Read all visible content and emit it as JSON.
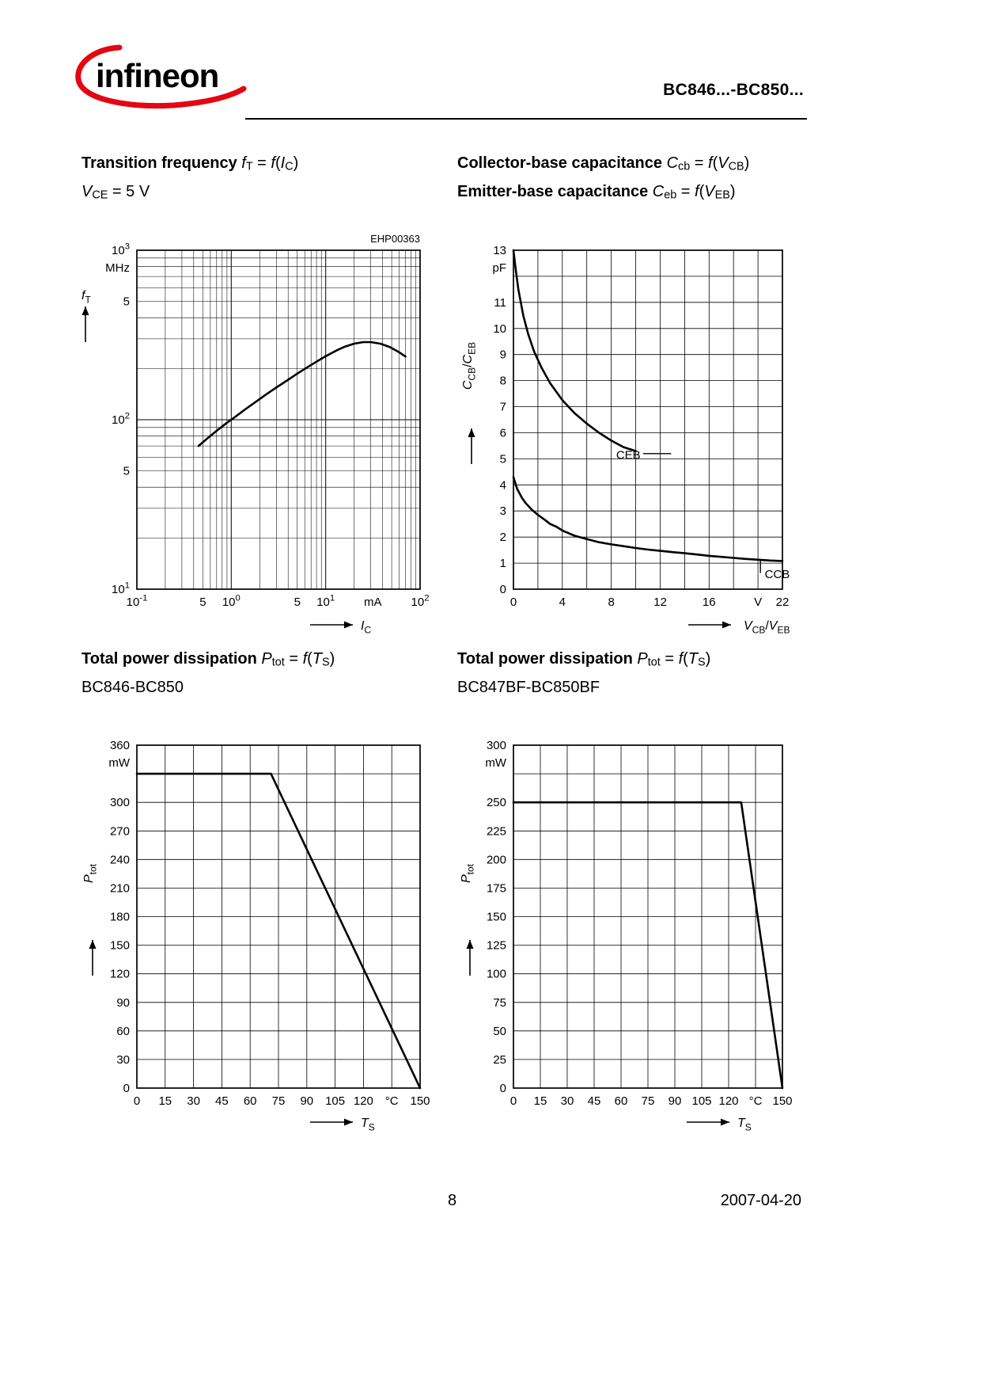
{
  "header": {
    "logo_text": "infineon",
    "doc_title": "BC846...-BC850...",
    "brand_blue": "#1E5BA8",
    "brand_red": "#E30613"
  },
  "footer": {
    "page_number": "8",
    "date": "2007-04-20"
  },
  "headings": {
    "ft_title": [
      {
        "t": "Transition frequency ",
        "b": true
      },
      {
        "t": "f",
        "m": true
      },
      {
        "t": "T",
        "s": true
      },
      {
        "t": " = "
      },
      {
        "t": "f",
        "m": true
      },
      {
        "t": "("
      },
      {
        "t": "I",
        "m": true
      },
      {
        "t": "C",
        "s": true
      },
      {
        "t": ")"
      }
    ],
    "ft_subtitle": [
      {
        "t": "V",
        "m": true
      },
      {
        "t": "CE",
        "s": true
      },
      {
        "t": " = 5 V"
      }
    ],
    "cap_title1": [
      {
        "t": "Collector-base capacitance ",
        "b": true
      },
      {
        "t": "C",
        "m": true
      },
      {
        "t": "cb",
        "s": true
      },
      {
        "t": " = "
      },
      {
        "t": "f",
        "m": true
      },
      {
        "t": "("
      },
      {
        "t": "V",
        "m": true
      },
      {
        "t": "CB",
        "s": true
      },
      {
        "t": ")"
      }
    ],
    "cap_title2": [
      {
        "t": "Emitter-base capacitance ",
        "b": true
      },
      {
        "t": "C",
        "m": true
      },
      {
        "t": "eb",
        "s": true
      },
      {
        "t": " = "
      },
      {
        "t": "f",
        "m": true
      },
      {
        "t": "("
      },
      {
        "t": "V",
        "m": true
      },
      {
        "t": "EB",
        "s": true
      },
      {
        "t": ")"
      }
    ],
    "ptot1_title": [
      {
        "t": "Total power dissipation ",
        "b": true
      },
      {
        "t": "P",
        "m": true
      },
      {
        "t": "tot",
        "s": true
      },
      {
        "t": " = "
      },
      {
        "t": "f",
        "m": true
      },
      {
        "t": "("
      },
      {
        "t": "T",
        "m": true
      },
      {
        "t": "S",
        "s": true
      },
      {
        "t": ")"
      }
    ],
    "ptot1_subtitle": [
      {
        "t": "BC846-BC850"
      }
    ],
    "ptot2_title": [
      {
        "t": "Total power dissipation ",
        "b": true
      },
      {
        "t": "P",
        "m": true
      },
      {
        "t": "tot",
        "s": true
      },
      {
        "t": " = "
      },
      {
        "t": "f",
        "m": true
      },
      {
        "t": "("
      },
      {
        "t": "T",
        "m": true
      },
      {
        "t": "S",
        "s": true
      },
      {
        "t": ")"
      }
    ],
    "ptot2_subtitle": [
      {
        "t": "BC847BF-BC850BF"
      }
    ]
  },
  "chart_data": [
    {
      "id": "transition-frequency",
      "type": "line",
      "title": "Transition frequency fT = f(IC), VCE = 5 V",
      "note": "EHP00363",
      "x": {
        "scale": "log",
        "min": 0.1,
        "max": 100,
        "unit": "mA",
        "axis_label": [
          {
            "t": "I",
            "m": true
          },
          {
            "t": "C",
            "s": true
          }
        ],
        "ticks": [
          {
            "v": 0.1,
            "label": [
              {
                "t": "10"
              },
              {
                "t": "-1",
                "u": true
              }
            ]
          },
          {
            "v": 0.5,
            "label": "5"
          },
          {
            "v": 1,
            "label": [
              {
                "t": "10"
              },
              {
                "t": "0",
                "u": true
              }
            ]
          },
          {
            "v": 5,
            "label": "5"
          },
          {
            "v": 10,
            "label": [
              {
                "t": "10"
              },
              {
                "t": "1",
                "u": true
              }
            ]
          },
          {
            "v": 31.6,
            "label": "mA"
          },
          {
            "v": 100,
            "label": [
              {
                "t": "10"
              },
              {
                "t": "2",
                "u": true
              }
            ]
          }
        ]
      },
      "y": {
        "scale": "log",
        "min": 10,
        "max": 1000,
        "unit": "MHz",
        "axis_label": [
          {
            "t": "f",
            "m": true
          },
          {
            "t": "T",
            "s": true
          }
        ],
        "ticks": [
          {
            "v": 1000,
            "label": [
              {
                "t": "10"
              },
              {
                "t": "3",
                "u": true
              }
            ]
          },
          {
            "v": 500,
            "label": "5"
          },
          {
            "v": 100,
            "label": [
              {
                "t": "10"
              },
              {
                "t": "2",
                "u": true
              }
            ]
          },
          {
            "v": 50,
            "label": "5"
          },
          {
            "v": 10,
            "label": [
              {
                "t": "10"
              },
              {
                "t": "1",
                "u": true
              }
            ]
          }
        ]
      },
      "series": [
        {
          "name": "fT",
          "points": [
            [
              0.45,
              70
            ],
            [
              0.55,
              77
            ],
            [
              0.7,
              86
            ],
            [
              0.9,
              96
            ],
            [
              1.1,
              104
            ],
            [
              1.4,
              115
            ],
            [
              1.8,
              127
            ],
            [
              2.3,
              140
            ],
            [
              3,
              155
            ],
            [
              4,
              172
            ],
            [
              5,
              187
            ],
            [
              6.5,
              205
            ],
            [
              8,
              220
            ],
            [
              10,
              237
            ],
            [
              13,
              256
            ],
            [
              16,
              270
            ],
            [
              20,
              281
            ],
            [
              25,
              287
            ],
            [
              30,
              287
            ],
            [
              38,
              281
            ],
            [
              48,
              268
            ],
            [
              60,
              250
            ],
            [
              70,
              236
            ]
          ]
        }
      ]
    },
    {
      "id": "capacitance",
      "type": "line",
      "title": "Collector-base capacitance Ccb = f(VCB); Emitter-base capacitance Ceb = f(VEB)",
      "x": {
        "scale": "linear",
        "min": 0,
        "max": 22,
        "grid_step": 2,
        "unit": "V",
        "axis_label": [
          {
            "t": "V",
            "m": true
          },
          {
            "t": "CB",
            "s": true
          },
          {
            "t": "/"
          },
          {
            "t": "V",
            "m": true
          },
          {
            "t": "EB",
            "s": true
          }
        ],
        "ticks": [
          {
            "v": 0,
            "label": "0"
          },
          {
            "v": 4,
            "label": "4"
          },
          {
            "v": 8,
            "label": "8"
          },
          {
            "v": 12,
            "label": "12"
          },
          {
            "v": 16,
            "label": "16"
          },
          {
            "v": 20,
            "label": "V"
          },
          {
            "v": 22,
            "label": "22"
          }
        ]
      },
      "y": {
        "scale": "linear",
        "min": 0,
        "max": 13,
        "grid_step": 1,
        "unit": "pF",
        "axis_label": [
          {
            "t": "C",
            "m": true
          },
          {
            "t": "CB",
            "s": true
          },
          {
            "t": "/"
          },
          {
            "t": "C",
            "m": true
          },
          {
            "t": "EB",
            "s": true
          }
        ],
        "ticks": [
          {
            "v": 13,
            "label": "13"
          },
          {
            "v": 11,
            "label": "11"
          },
          {
            "v": 10,
            "label": "10"
          },
          {
            "v": 9,
            "label": "9"
          },
          {
            "v": 8,
            "label": "8"
          },
          {
            "v": 7,
            "label": "7"
          },
          {
            "v": 6,
            "label": "6"
          },
          {
            "v": 5,
            "label": "5"
          },
          {
            "v": 4,
            "label": "4"
          },
          {
            "v": 3,
            "label": "3"
          },
          {
            "v": 2,
            "label": "2"
          },
          {
            "v": 1,
            "label": "1"
          },
          {
            "v": 0,
            "label": "0"
          }
        ]
      },
      "series": [
        {
          "name": "CEB",
          "points": [
            [
              0,
              13
            ],
            [
              0.15,
              12.4
            ],
            [
              0.4,
              11.5
            ],
            [
              0.8,
              10.5
            ],
            [
              1.2,
              9.8
            ],
            [
              1.7,
              9.1
            ],
            [
              2.3,
              8.5
            ],
            [
              3,
              7.9
            ],
            [
              4,
              7.25
            ],
            [
              5,
              6.75
            ],
            [
              6,
              6.35
            ],
            [
              7,
              6.0
            ],
            [
              8,
              5.7
            ],
            [
              9,
              5.45
            ],
            [
              10,
              5.3
            ]
          ]
        },
        {
          "name": "CCB",
          "points": [
            [
              0,
              4.3
            ],
            [
              0.3,
              3.85
            ],
            [
              0.7,
              3.5
            ],
            [
              1,
              3.3
            ],
            [
              1.5,
              3.05
            ],
            [
              2,
              2.85
            ],
            [
              2.6,
              2.65
            ],
            [
              3,
              2.5
            ],
            [
              3.5,
              2.4
            ],
            [
              4,
              2.25
            ],
            [
              5,
              2.05
            ],
            [
              6,
              1.92
            ],
            [
              7,
              1.8
            ],
            [
              8,
              1.72
            ],
            [
              9,
              1.65
            ],
            [
              10,
              1.58
            ],
            [
              11,
              1.52
            ],
            [
              12,
              1.47
            ],
            [
              13,
              1.42
            ],
            [
              14,
              1.38
            ],
            [
              15,
              1.33
            ],
            [
              16,
              1.28
            ],
            [
              17,
              1.24
            ],
            [
              18,
              1.2
            ],
            [
              19,
              1.16
            ],
            [
              20,
              1.13
            ],
            [
              21,
              1.1
            ],
            [
              22,
              1.08
            ]
          ]
        }
      ],
      "annotations": [
        {
          "text": "CEB",
          "x": 8.4,
          "y": 5.0,
          "leader": [
            [
              10.6,
              5.2
            ],
            [
              12.9,
              5.2
            ]
          ]
        },
        {
          "text": "CCB",
          "x": 20.55,
          "y": 0.42,
          "leader": [
            [
              20.2,
              1.1
            ],
            [
              20.2,
              0.62
            ]
          ]
        }
      ]
    },
    {
      "id": "ptot-bc846",
      "type": "line",
      "title": "Total power dissipation Ptot = f(TS)",
      "variant": "BC846-BC850",
      "x": {
        "scale": "linear",
        "min": 0,
        "max": 150,
        "grid_step": 15,
        "unit": "°C",
        "axis_label": [
          {
            "t": "T",
            "m": true
          },
          {
            "t": "S",
            "s": true
          }
        ],
        "ticks": [
          {
            "v": 0,
            "label": "0"
          },
          {
            "v": 15,
            "label": "15"
          },
          {
            "v": 30,
            "label": "30"
          },
          {
            "v": 45,
            "label": "45"
          },
          {
            "v": 60,
            "label": "60"
          },
          {
            "v": 75,
            "label": "75"
          },
          {
            "v": 90,
            "label": "90"
          },
          {
            "v": 105,
            "label": "105"
          },
          {
            "v": 120,
            "label": "120"
          },
          {
            "v": 135,
            "label": "°C"
          },
          {
            "v": 150,
            "label": "150"
          }
        ]
      },
      "y": {
        "scale": "linear",
        "min": 0,
        "max": 360,
        "grid_step": 30,
        "unit": "mW",
        "axis_label": [
          {
            "t": "P",
            "m": true
          },
          {
            "t": "tot",
            "s": true
          }
        ],
        "ticks": [
          {
            "v": 360,
            "label": "360"
          },
          {
            "v": 300,
            "label": "300"
          },
          {
            "v": 270,
            "label": "270"
          },
          {
            "v": 240,
            "label": "240"
          },
          {
            "v": 210,
            "label": "210"
          },
          {
            "v": 180,
            "label": "180"
          },
          {
            "v": 150,
            "label": "150"
          },
          {
            "v": 120,
            "label": "120"
          },
          {
            "v": 90,
            "label": "90"
          },
          {
            "v": 60,
            "label": "60"
          },
          {
            "v": 30,
            "label": "30"
          },
          {
            "v": 0,
            "label": "0"
          }
        ]
      },
      "series": [
        {
          "name": "Ptot",
          "points": [
            [
              0,
              330
            ],
            [
              71,
              330
            ],
            [
              150,
              0
            ]
          ]
        }
      ]
    },
    {
      "id": "ptot-bc847bf",
      "type": "line",
      "title": "Total power dissipation Ptot = f(TS)",
      "variant": "BC847BF-BC850BF",
      "x": {
        "scale": "linear",
        "min": 0,
        "max": 150,
        "grid_step": 15,
        "unit": "°C",
        "axis_label": [
          {
            "t": "T",
            "m": true
          },
          {
            "t": "S",
            "s": true
          }
        ],
        "ticks": [
          {
            "v": 0,
            "label": "0"
          },
          {
            "v": 15,
            "label": "15"
          },
          {
            "v": 30,
            "label": "30"
          },
          {
            "v": 45,
            "label": "45"
          },
          {
            "v": 60,
            "label": "60"
          },
          {
            "v": 75,
            "label": "75"
          },
          {
            "v": 90,
            "label": "90"
          },
          {
            "v": 105,
            "label": "105"
          },
          {
            "v": 120,
            "label": "120"
          },
          {
            "v": 135,
            "label": "°C"
          },
          {
            "v": 150,
            "label": "150"
          }
        ]
      },
      "y": {
        "scale": "linear",
        "min": 0,
        "max": 300,
        "grid_step": 25,
        "unit": "mW",
        "axis_label": [
          {
            "t": "P",
            "m": true
          },
          {
            "t": "tot",
            "s": true
          }
        ],
        "ticks": [
          {
            "v": 300,
            "label": "300"
          },
          {
            "v": 250,
            "label": "250"
          },
          {
            "v": 225,
            "label": "225"
          },
          {
            "v": 200,
            "label": "200"
          },
          {
            "v": 175,
            "label": "175"
          },
          {
            "v": 150,
            "label": "150"
          },
          {
            "v": 125,
            "label": "125"
          },
          {
            "v": 100,
            "label": "100"
          },
          {
            "v": 75,
            "label": "75"
          },
          {
            "v": 50,
            "label": "50"
          },
          {
            "v": 25,
            "label": "25"
          },
          {
            "v": 0,
            "label": "0"
          }
        ]
      },
      "series": [
        {
          "name": "Ptot",
          "points": [
            [
              0,
              250
            ],
            [
              127,
              250
            ],
            [
              150,
              0
            ]
          ]
        }
      ]
    }
  ]
}
